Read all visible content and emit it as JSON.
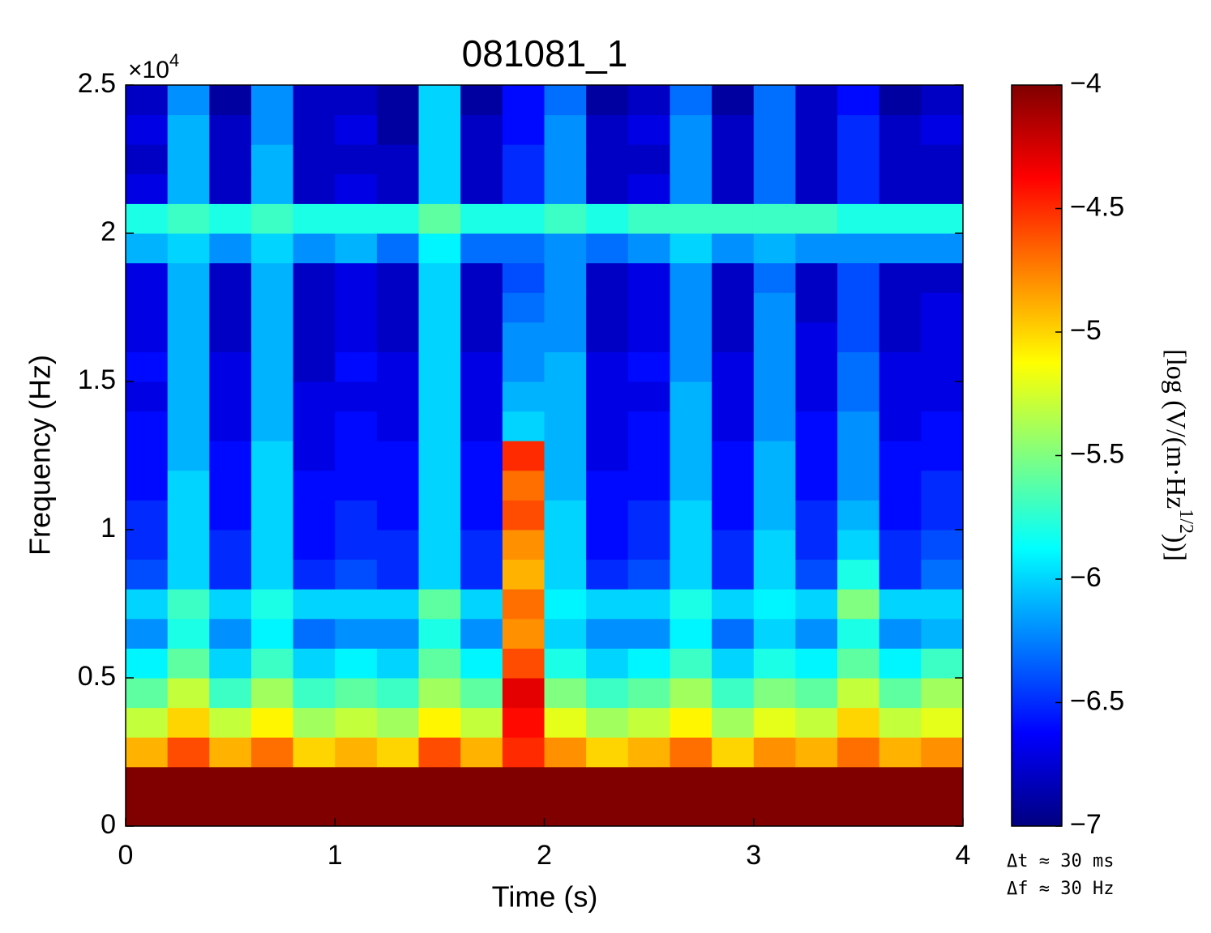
{
  "chart_data": {
    "type": "heatmap",
    "title": "081081_1",
    "x_label": "Time (s)",
    "y_label": "Frequency (Hz)",
    "y_multiplier": "×10",
    "y_multiplier_exp": "4",
    "colorbar_label": "[log (V/(m·Hz",
    "colorbar_label_exp": "1/2",
    "colorbar_label_end": "))]",
    "annotations": [
      "Δt ≈ 30 ms",
      "Δf ≈ 30 Hz"
    ],
    "colormap": "jet",
    "xlim": [
      0,
      4
    ],
    "xticks": [
      0,
      1,
      2,
      3,
      4
    ],
    "ylim": [
      0,
      25000
    ],
    "yticks": [
      {
        "value": 0,
        "label": "0"
      },
      {
        "value": 5000,
        "label": "0.5"
      },
      {
        "value": 10000,
        "label": "1"
      },
      {
        "value": 15000,
        "label": "1.5"
      },
      {
        "value": 20000,
        "label": "2"
      },
      {
        "value": 25000,
        "label": "2.5"
      }
    ],
    "clim": [
      -7,
      -4
    ],
    "cticks": [
      {
        "value": -4,
        "label": "−4"
      },
      {
        "value": -4.5,
        "label": "−4.5"
      },
      {
        "value": -5,
        "label": "−5"
      },
      {
        "value": -5.5,
        "label": "−5.5"
      },
      {
        "value": -6,
        "label": "−6"
      },
      {
        "value": -6.5,
        "label": "−6.5"
      },
      {
        "value": -7,
        "label": "−7"
      }
    ],
    "x": [
      0.1,
      0.3,
      0.5,
      0.7,
      0.9,
      1.1,
      1.3,
      1.5,
      1.7,
      1.9,
      2.1,
      2.3,
      2.5,
      2.7,
      2.9,
      3.1,
      3.3,
      3.5,
      3.7,
      3.9
    ],
    "y": [
      500,
      1500,
      2500,
      3500,
      4500,
      5500,
      6500,
      7500,
      8500,
      9500,
      10500,
      11500,
      12500,
      13500,
      14500,
      15500,
      16500,
      17500,
      18500,
      19500,
      20500,
      21500,
      22500,
      23500,
      24500
    ],
    "z": [
      [
        -4,
        -4,
        -4,
        -4,
        -4,
        -4,
        -4,
        -4,
        -4,
        -4,
        -4,
        -4,
        -4,
        -4,
        -4,
        -4,
        -4,
        -4,
        -4,
        -4
      ],
      [
        -4,
        -4,
        -4,
        -4,
        -4,
        -4,
        -4,
        -4,
        -4,
        -4,
        -4,
        -4,
        -4,
        -4,
        -4,
        -4,
        -4,
        -4,
        -4,
        -4
      ],
      [
        -4.9,
        -4.6,
        -4.9,
        -4.7,
        -5.0,
        -4.9,
        -5.0,
        -4.6,
        -4.9,
        -4.5,
        -4.8,
        -5.0,
        -4.9,
        -4.7,
        -5.0,
        -4.8,
        -4.9,
        -4.7,
        -4.9,
        -4.8
      ],
      [
        -5.3,
        -5.0,
        -5.3,
        -5.1,
        -5.4,
        -5.3,
        -5.4,
        -5.1,
        -5.3,
        -4.4,
        -5.2,
        -5.4,
        -5.3,
        -5.1,
        -5.4,
        -5.2,
        -5.3,
        -5.0,
        -5.3,
        -5.2
      ],
      [
        -5.6,
        -5.3,
        -5.7,
        -5.4,
        -5.7,
        -5.6,
        -5.7,
        -5.4,
        -5.6,
        -4.3,
        -5.5,
        -5.7,
        -5.6,
        -5.4,
        -5.7,
        -5.5,
        -5.6,
        -5.3,
        -5.6,
        -5.4
      ],
      [
        -5.9,
        -5.6,
        -6.0,
        -5.7,
        -6.0,
        -5.9,
        -6.0,
        -5.6,
        -5.9,
        -4.6,
        -5.8,
        -6.0,
        -5.9,
        -5.7,
        -6.0,
        -5.8,
        -5.9,
        -5.6,
        -5.9,
        -5.7
      ],
      [
        -6.2,
        -5.8,
        -6.2,
        -5.9,
        -6.3,
        -6.2,
        -6.2,
        -5.8,
        -6.2,
        -4.8,
        -6.0,
        -6.2,
        -6.2,
        -5.9,
        -6.3,
        -6.0,
        -6.2,
        -5.8,
        -6.2,
        -6.1
      ],
      [
        -6.0,
        -5.7,
        -6.0,
        -5.8,
        -6.0,
        -6.0,
        -6.0,
        -5.6,
        -6.0,
        -4.7,
        -5.9,
        -6.0,
        -6.0,
        -5.8,
        -6.0,
        -5.9,
        -6.0,
        -5.5,
        -6.0,
        -6.0
      ],
      [
        -6.4,
        -6.0,
        -6.5,
        -6.0,
        -6.5,
        -6.4,
        -6.5,
        -6.0,
        -6.5,
        -4.9,
        -6.0,
        -6.5,
        -6.4,
        -6.0,
        -6.5,
        -6.0,
        -6.4,
        -5.8,
        -6.5,
        -6.3
      ],
      [
        -6.5,
        -6.0,
        -6.5,
        -6.0,
        -6.6,
        -6.5,
        -6.5,
        -6.0,
        -6.5,
        -4.8,
        -6.0,
        -6.6,
        -6.5,
        -6.0,
        -6.5,
        -6.0,
        -6.5,
        -6.0,
        -6.5,
        -6.4
      ],
      [
        -6.5,
        -6.0,
        -6.6,
        -6.0,
        -6.6,
        -6.5,
        -6.6,
        -6.0,
        -6.6,
        -4.6,
        -6.0,
        -6.6,
        -6.5,
        -6.0,
        -6.6,
        -6.1,
        -6.5,
        -6.1,
        -6.6,
        -6.5
      ],
      [
        -6.6,
        -6.0,
        -6.6,
        -6.0,
        -6.6,
        -6.6,
        -6.6,
        -6.0,
        -6.6,
        -4.7,
        -6.1,
        -6.6,
        -6.6,
        -6.1,
        -6.6,
        -6.1,
        -6.6,
        -6.2,
        -6.6,
        -6.5
      ],
      [
        -6.6,
        -6.1,
        -6.6,
        -6.0,
        -6.7,
        -6.6,
        -6.6,
        -6.0,
        -6.6,
        -4.5,
        -6.1,
        -6.7,
        -6.6,
        -6.1,
        -6.6,
        -6.1,
        -6.6,
        -6.2,
        -6.6,
        -6.6
      ],
      [
        -6.6,
        -6.1,
        -6.7,
        -6.1,
        -6.7,
        -6.6,
        -6.7,
        -6.0,
        -6.7,
        -6.0,
        -6.1,
        -6.7,
        -6.6,
        -6.1,
        -6.7,
        -6.2,
        -6.6,
        -6.2,
        -6.7,
        -6.6
      ],
      [
        -6.7,
        -6.1,
        -6.7,
        -6.1,
        -6.7,
        -6.7,
        -6.7,
        -6.0,
        -6.7,
        -6.1,
        -6.1,
        -6.7,
        -6.7,
        -6.1,
        -6.7,
        -6.2,
        -6.7,
        -6.3,
        -6.7,
        -6.7
      ],
      [
        -6.6,
        -6.1,
        -6.7,
        -6.1,
        -6.8,
        -6.6,
        -6.7,
        -6.0,
        -6.7,
        -6.2,
        -6.1,
        -6.7,
        -6.6,
        -6.2,
        -6.7,
        -6.2,
        -6.7,
        -6.3,
        -6.7,
        -6.7
      ],
      [
        -6.7,
        -6.1,
        -6.8,
        -6.1,
        -6.8,
        -6.7,
        -6.8,
        -6.0,
        -6.8,
        -6.2,
        -6.2,
        -6.8,
        -6.7,
        -6.2,
        -6.8,
        -6.2,
        -6.7,
        -6.4,
        -6.8,
        -6.7
      ],
      [
        -6.7,
        -6.1,
        -6.8,
        -6.1,
        -6.8,
        -6.7,
        -6.8,
        -6.0,
        -6.8,
        -6.3,
        -6.2,
        -6.8,
        -6.7,
        -6.2,
        -6.8,
        -6.2,
        -6.8,
        -6.4,
        -6.8,
        -6.7
      ],
      [
        -6.7,
        -6.1,
        -6.8,
        -6.1,
        -6.8,
        -6.7,
        -6.8,
        -6.0,
        -6.8,
        -6.4,
        -6.2,
        -6.8,
        -6.7,
        -6.2,
        -6.8,
        -6.3,
        -6.8,
        -6.4,
        -6.8,
        -6.8
      ],
      [
        -6.1,
        -6.0,
        -6.2,
        -6.0,
        -6.2,
        -6.1,
        -6.3,
        -5.9,
        -6.3,
        -6.3,
        -6.2,
        -6.3,
        -6.2,
        -6.0,
        -6.2,
        -6.1,
        -6.2,
        -6.2,
        -6.2,
        -6.2
      ],
      [
        -5.8,
        -5.7,
        -5.8,
        -5.7,
        -5.8,
        -5.8,
        -5.8,
        -5.6,
        -5.8,
        -5.8,
        -5.7,
        -5.8,
        -5.7,
        -5.7,
        -5.7,
        -5.7,
        -5.7,
        -5.8,
        -5.8,
        -5.8
      ],
      [
        -6.7,
        -6.1,
        -6.8,
        -6.1,
        -6.8,
        -6.7,
        -6.8,
        -6.0,
        -6.8,
        -6.5,
        -6.2,
        -6.8,
        -6.7,
        -6.2,
        -6.8,
        -6.3,
        -6.8,
        -6.5,
        -6.8,
        -6.8
      ],
      [
        -6.8,
        -6.1,
        -6.8,
        -6.1,
        -6.8,
        -6.8,
        -6.8,
        -6.0,
        -6.8,
        -6.5,
        -6.2,
        -6.8,
        -6.8,
        -6.2,
        -6.8,
        -6.3,
        -6.8,
        -6.5,
        -6.8,
        -6.8
      ],
      [
        -6.7,
        -6.1,
        -6.8,
        -6.2,
        -6.8,
        -6.7,
        -6.9,
        -6.0,
        -6.8,
        -6.6,
        -6.2,
        -6.8,
        -6.7,
        -6.2,
        -6.8,
        -6.3,
        -6.8,
        -6.5,
        -6.8,
        -6.7
      ],
      [
        -6.8,
        -6.2,
        -6.9,
        -6.2,
        -6.8,
        -6.8,
        -6.9,
        -6.0,
        -6.9,
        -6.6,
        -6.3,
        -6.9,
        -6.8,
        -6.3,
        -6.9,
        -6.3,
        -6.8,
        -6.6,
        -6.9,
        -6.8
      ]
    ]
  }
}
